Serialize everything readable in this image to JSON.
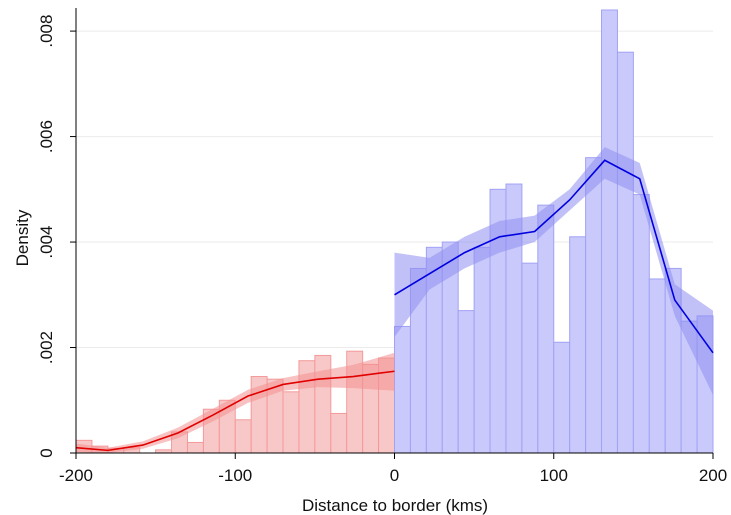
{
  "chart_data": {
    "type": "bar",
    "xlabel": "Distance to border (kms)",
    "ylabel": "Density",
    "xlim": [
      -200,
      200
    ],
    "ylim": [
      0,
      0.0084
    ],
    "x_ticks": [
      -200,
      -100,
      0,
      100,
      200
    ],
    "x_tick_labels": [
      "-200",
      "-100",
      "0",
      "100",
      "200"
    ],
    "y_ticks": [
      0,
      0.002,
      0.004,
      0.006,
      0.008
    ],
    "y_tick_labels": [
      "0",
      ".002",
      ".004",
      ".006",
      ".008"
    ],
    "grid": "horizontal",
    "colors": {
      "left_fill": "#f8c8c8",
      "left_edge": "#f29a9a",
      "left_line": "#e00000",
      "left_band": "#f48f8f",
      "right_fill": "#c9c9fb",
      "right_edge": "#a2a2f5",
      "right_line": "#0000e0",
      "right_band": "#8e8ef3",
      "grid": "#ebebeb",
      "axis": "#000000"
    },
    "histogram_left": {
      "bin_width": 10,
      "bins": [
        {
          "x0": -200,
          "density": 0.00024
        },
        {
          "x0": -190,
          "density": 0.00013
        },
        {
          "x0": -180,
          "density": 9e-05
        },
        {
          "x0": -170,
          "density": 0.0001
        },
        {
          "x0": -160,
          "density": 0.0
        },
        {
          "x0": -150,
          "density": 6e-05
        },
        {
          "x0": -140,
          "density": 0.0004
        },
        {
          "x0": -130,
          "density": 0.0002
        },
        {
          "x0": -120,
          "density": 0.00083
        },
        {
          "x0": -110,
          "density": 0.001
        },
        {
          "x0": -100,
          "density": 0.00063
        },
        {
          "x0": -90,
          "density": 0.00145
        },
        {
          "x0": -80,
          "density": 0.0014
        },
        {
          "x0": -70,
          "density": 0.00116
        },
        {
          "x0": -60,
          "density": 0.00175
        },
        {
          "x0": -50,
          "density": 0.00185
        },
        {
          "x0": -40,
          "density": 0.00075
        },
        {
          "x0": -30,
          "density": 0.00193
        },
        {
          "x0": -20,
          "density": 0.00168
        },
        {
          "x0": -10,
          "density": 0.0018
        }
      ]
    },
    "histogram_right": {
      "bin_width": 10,
      "bins": [
        {
          "x0": 0,
          "density": 0.0024
        },
        {
          "x0": 10,
          "density": 0.0035
        },
        {
          "x0": 20,
          "density": 0.0039
        },
        {
          "x0": 30,
          "density": 0.004
        },
        {
          "x0": 40,
          "density": 0.0027
        },
        {
          "x0": 50,
          "density": 0.0039
        },
        {
          "x0": 60,
          "density": 0.005
        },
        {
          "x0": 70,
          "density": 0.0051
        },
        {
          "x0": 80,
          "density": 0.0036
        },
        {
          "x0": 90,
          "density": 0.0047
        },
        {
          "x0": 100,
          "density": 0.0021
        },
        {
          "x0": 110,
          "density": 0.0041
        },
        {
          "x0": 120,
          "density": 0.0056
        },
        {
          "x0": 130,
          "density": 0.0084
        },
        {
          "x0": 140,
          "density": 0.0076
        },
        {
          "x0": 150,
          "density": 0.0049
        },
        {
          "x0": 160,
          "density": 0.0033
        },
        {
          "x0": 170,
          "density": 0.0035
        },
        {
          "x0": 180,
          "density": 0.0025
        },
        {
          "x0": 190,
          "density": 0.0026
        }
      ]
    },
    "series": [
      {
        "side": "left",
        "x": [
          -200,
          -180,
          -158,
          -136,
          -114,
          -92,
          -70,
          -48,
          -26,
          0
        ],
        "y": [
          0.0001,
          5e-05,
          0.00015,
          0.00038,
          0.00072,
          0.00108,
          0.0013,
          0.0014,
          0.00145,
          0.00155
        ],
        "ci_lower": [
          2e-05,
          0.0,
          8e-05,
          0.00028,
          0.0006,
          0.00095,
          0.00118,
          0.00125,
          0.00123,
          0.00118
        ],
        "ci_upper": [
          0.00018,
          0.0001,
          0.00022,
          0.00048,
          0.00084,
          0.0012,
          0.00142,
          0.00155,
          0.00167,
          0.0019
        ]
      },
      {
        "side": "right",
        "x": [
          0,
          22,
          44,
          66,
          88,
          110,
          132,
          154,
          176,
          200
        ],
        "y": [
          0.003,
          0.0034,
          0.0038,
          0.0041,
          0.0042,
          0.0048,
          0.00555,
          0.0052,
          0.0029,
          0.0019
        ],
        "ci_lower": [
          0.0022,
          0.0031,
          0.0035,
          0.0038,
          0.004,
          0.0046,
          0.0052,
          0.0049,
          0.0026,
          0.0011
        ],
        "ci_upper": [
          0.0038,
          0.0037,
          0.0041,
          0.0044,
          0.0045,
          0.005,
          0.0058,
          0.0055,
          0.0032,
          0.0027
        ]
      }
    ]
  }
}
